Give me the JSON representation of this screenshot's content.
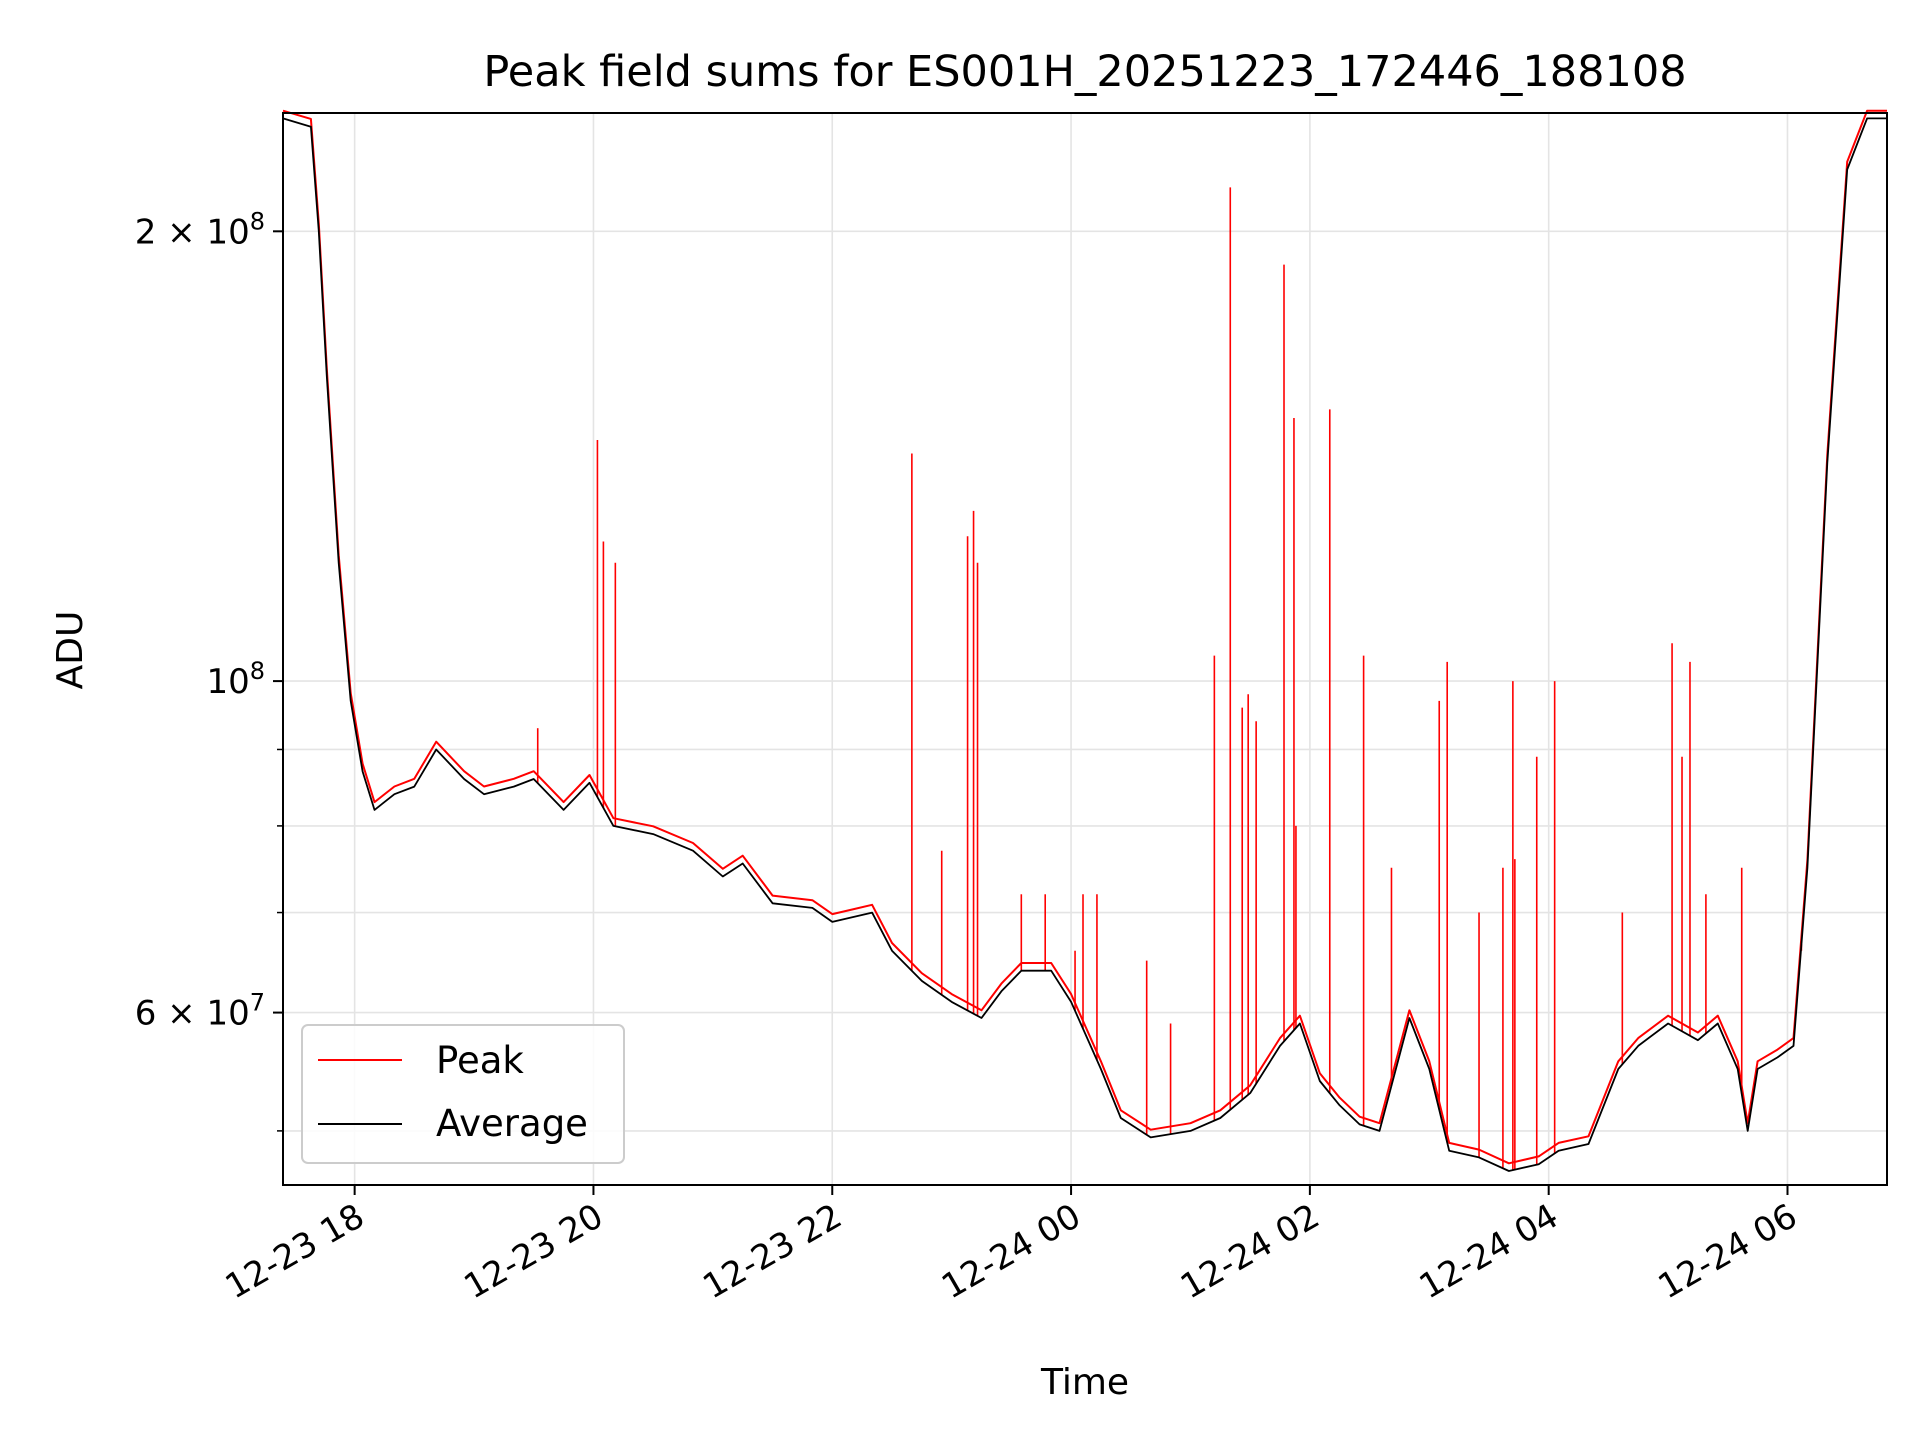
{
  "chart_data": {
    "type": "line",
    "title": "Peak field sums for ES001H_20251223_172446_188108",
    "xlabel": "Time",
    "ylabel": "ADU",
    "yscale": "log",
    "ylim": [
      46000000,
      240000000
    ],
    "xlim": [
      "2025-12-23 17:24",
      "2025-12-24 06:50"
    ],
    "grid": true,
    "legend_position": "lower-left",
    "x_ticks": [
      "2025-12-23 18:00",
      "2025-12-23 20:00",
      "2025-12-23 22:00",
      "2025-12-24 00:00",
      "2025-12-24 02:00",
      "2025-12-24 04:00",
      "2025-12-24 06:00"
    ],
    "x_tick_labels": [
      "12-23 18",
      "12-23 20",
      "12-23 22",
      "12-24 00",
      "12-24 02",
      "12-24 04",
      "12-24 06"
    ],
    "y_ticks": [
      {
        "value": 200000000,
        "label": "2 × 10^8",
        "mantissa": "2",
        "exponent": "8"
      },
      {
        "value": 100000000,
        "label": "10^8",
        "mantissa": "",
        "exponent": "8"
      },
      {
        "value": 60000000,
        "label": "6 × 10^7",
        "mantissa": "6",
        "exponent": "7"
      }
    ],
    "y_minor_ticks": [
      50000000,
      70000000,
      80000000,
      90000000
    ],
    "series": [
      {
        "name": "Average",
        "color": "#000000",
        "points": [
          [
            "2025-12-23 17:24",
            238000000
          ],
          [
            "2025-12-23 17:38",
            235000000
          ],
          [
            "2025-12-23 17:42",
            200000000
          ],
          [
            "2025-12-23 17:46",
            160000000
          ],
          [
            "2025-12-23 17:52",
            120000000
          ],
          [
            "2025-12-23 17:58",
            97000000
          ],
          [
            "2025-12-23 18:04",
            87000000
          ],
          [
            "2025-12-23 18:10",
            82000000
          ],
          [
            "2025-12-23 18:20",
            84000000
          ],
          [
            "2025-12-23 18:30",
            85000000
          ],
          [
            "2025-12-23 18:41",
            90000000
          ],
          [
            "2025-12-23 18:55",
            86000000
          ],
          [
            "2025-12-23 19:05",
            84000000
          ],
          [
            "2025-12-23 19:20",
            85000000
          ],
          [
            "2025-12-23 19:30",
            86000000
          ],
          [
            "2025-12-23 19:45",
            82000000
          ],
          [
            "2025-12-23 19:58",
            85500000
          ],
          [
            "2025-12-23 20:10",
            80000000
          ],
          [
            "2025-12-23 20:30",
            79000000
          ],
          [
            "2025-12-23 20:50",
            77000000
          ],
          [
            "2025-12-23 21:05",
            74000000
          ],
          [
            "2025-12-23 21:15",
            75500000
          ],
          [
            "2025-12-23 21:30",
            71000000
          ],
          [
            "2025-12-23 21:50",
            70500000
          ],
          [
            "2025-12-23 22:00",
            69000000
          ],
          [
            "2025-12-23 22:10",
            69500000
          ],
          [
            "2025-12-23 22:20",
            70000000
          ],
          [
            "2025-12-23 22:30",
            66000000
          ],
          [
            "2025-12-23 22:45",
            63000000
          ],
          [
            "2025-12-23 23:00",
            61000000
          ],
          [
            "2025-12-23 23:15",
            59500000
          ],
          [
            "2025-12-23 23:25",
            62000000
          ],
          [
            "2025-12-23 23:35",
            64000000
          ],
          [
            "2025-12-23 23:50",
            64000000
          ],
          [
            "2025-12-24 00:00",
            61000000
          ],
          [
            "2025-12-24 00:15",
            55000000
          ],
          [
            "2025-12-24 00:25",
            51000000
          ],
          [
            "2025-12-24 00:40",
            49500000
          ],
          [
            "2025-12-24 01:00",
            50000000
          ],
          [
            "2025-12-24 01:15",
            51000000
          ],
          [
            "2025-12-24 01:30",
            53000000
          ],
          [
            "2025-12-24 01:45",
            57000000
          ],
          [
            "2025-12-24 01:55",
            59000000
          ],
          [
            "2025-12-24 02:05",
            54000000
          ],
          [
            "2025-12-24 02:15",
            52000000
          ],
          [
            "2025-12-24 02:25",
            50500000
          ],
          [
            "2025-12-24 02:35",
            50000000
          ],
          [
            "2025-12-24 02:50",
            59500000
          ],
          [
            "2025-12-24 03:00",
            55000000
          ],
          [
            "2025-12-24 03:10",
            48500000
          ],
          [
            "2025-12-24 03:25",
            48000000
          ],
          [
            "2025-12-24 03:40",
            47000000
          ],
          [
            "2025-12-24 03:55",
            47500000
          ],
          [
            "2025-12-24 04:05",
            48500000
          ],
          [
            "2025-12-24 04:20",
            49000000
          ],
          [
            "2025-12-24 04:35",
            55000000
          ],
          [
            "2025-12-24 04:45",
            57000000
          ],
          [
            "2025-12-24 05:00",
            59000000
          ],
          [
            "2025-12-24 05:15",
            57500000
          ],
          [
            "2025-12-24 05:25",
            59000000
          ],
          [
            "2025-12-24 05:35",
            55000000
          ],
          [
            "2025-12-24 05:40",
            50000000
          ],
          [
            "2025-12-24 05:45",
            55000000
          ],
          [
            "2025-12-24 05:55",
            56000000
          ],
          [
            "2025-12-24 06:03",
            57000000
          ],
          [
            "2025-12-24 06:10",
            75000000
          ],
          [
            "2025-12-24 06:20",
            140000000
          ],
          [
            "2025-12-24 06:30",
            220000000
          ],
          [
            "2025-12-24 06:40",
            238000000
          ],
          [
            "2025-12-24 06:50",
            238000000
          ]
        ]
      },
      {
        "name": "Peak",
        "color": "#ff0000",
        "spikes": [
          [
            "2025-12-23 19:32",
            93000000
          ],
          [
            "2025-12-23 20:02",
            145000000
          ],
          [
            "2025-12-23 20:05",
            124000000
          ],
          [
            "2025-12-23 20:11",
            120000000
          ],
          [
            "2025-12-23 22:40",
            142000000
          ],
          [
            "2025-12-23 22:55",
            77000000
          ],
          [
            "2025-12-23 23:08",
            125000000
          ],
          [
            "2025-12-23 23:11",
            130000000
          ],
          [
            "2025-12-23 23:13",
            120000000
          ],
          [
            "2025-12-23 23:35",
            72000000
          ],
          [
            "2025-12-23 23:47",
            72000000
          ],
          [
            "2025-12-24 00:02",
            66000000
          ],
          [
            "2025-12-24 00:06",
            72000000
          ],
          [
            "2025-12-24 00:13",
            72000000
          ],
          [
            "2025-12-24 00:38",
            65000000
          ],
          [
            "2025-12-24 00:50",
            59000000
          ],
          [
            "2025-12-24 01:12",
            104000000
          ],
          [
            "2025-12-24 01:20",
            214000000
          ],
          [
            "2025-12-24 01:26",
            96000000
          ],
          [
            "2025-12-24 01:29",
            98000000
          ],
          [
            "2025-12-24 01:33",
            94000000
          ],
          [
            "2025-12-24 01:47",
            190000000
          ],
          [
            "2025-12-24 01:52",
            150000000
          ],
          [
            "2025-12-24 01:53",
            80000000
          ],
          [
            "2025-12-24 02:10",
            152000000
          ],
          [
            "2025-12-24 02:27",
            104000000
          ],
          [
            "2025-12-24 02:41",
            75000000
          ],
          [
            "2025-12-24 03:05",
            97000000
          ],
          [
            "2025-12-24 03:09",
            103000000
          ],
          [
            "2025-12-24 03:25",
            70000000
          ],
          [
            "2025-12-24 03:37",
            75000000
          ],
          [
            "2025-12-24 03:42",
            100000000
          ],
          [
            "2025-12-24 03:43",
            76000000
          ],
          [
            "2025-12-24 03:54",
            89000000
          ],
          [
            "2025-12-24 04:03",
            100000000
          ],
          [
            "2025-12-24 04:37",
            70000000
          ],
          [
            "2025-12-24 05:02",
            106000000
          ],
          [
            "2025-12-24 05:07",
            89000000
          ],
          [
            "2025-12-24 05:11",
            103000000
          ],
          [
            "2025-12-24 05:19",
            72000000
          ],
          [
            "2025-12-24 05:37",
            75000000
          ],
          [
            "2025-12-24 06:07",
            66000000
          ]
        ]
      }
    ]
  }
}
